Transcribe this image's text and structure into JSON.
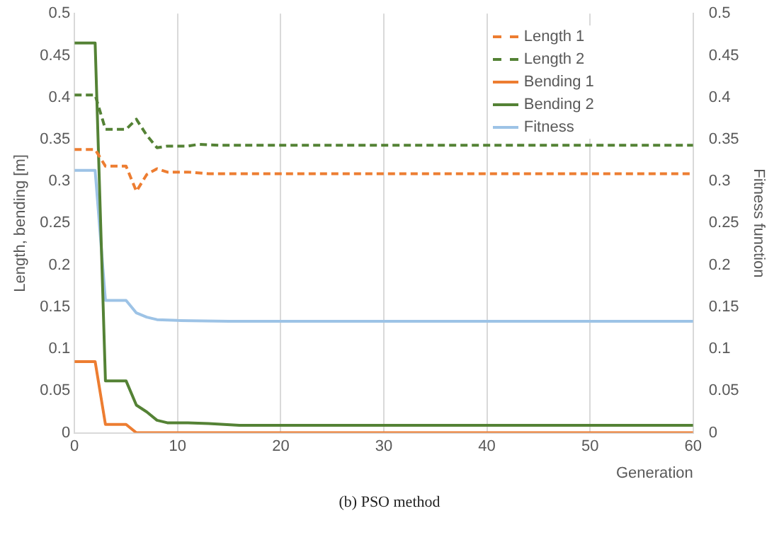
{
  "chart_data": {
    "type": "line",
    "xlabel": "Generation",
    "ylabel": "Length, bending [m]",
    "y2label": "Fitness function",
    "xlim": [
      0,
      60
    ],
    "xticks": [
      0,
      10,
      20,
      30,
      40,
      50,
      60
    ],
    "ylim": [
      0,
      0.5
    ],
    "yticks": [
      0,
      0.05,
      0.1,
      0.15,
      0.2,
      0.25,
      0.3,
      0.35,
      0.4,
      0.45,
      0.5
    ],
    "y2lim": [
      0,
      0.5
    ],
    "y2ticks": [
      0,
      0.05,
      0.1,
      0.15,
      0.2,
      0.25,
      0.3,
      0.35,
      0.4,
      0.45,
      0.5
    ],
    "grid": "x",
    "legend": "top right",
    "marker": "none",
    "annotations": [
      "(b) PSO method"
    ],
    "series": [
      {
        "name": "Length 1",
        "color": "#ed7d31",
        "line_style": "dashed",
        "x": [
          0,
          2,
          3,
          5,
          6,
          7,
          8,
          9,
          11,
          13,
          60
        ],
        "values": [
          0.338,
          0.338,
          0.318,
          0.318,
          0.288,
          0.308,
          0.315,
          0.311,
          0.311,
          0.309,
          0.309
        ]
      },
      {
        "name": "Length 2",
        "color": "#548235",
        "line_style": "dashed",
        "x": [
          0,
          2,
          3,
          5,
          6,
          7,
          8,
          9,
          11,
          12,
          14,
          60
        ],
        "values": [
          0.403,
          0.403,
          0.362,
          0.362,
          0.374,
          0.355,
          0.34,
          0.342,
          0.342,
          0.344,
          0.343,
          0.343
        ]
      },
      {
        "name": "Bending 1",
        "color": "#ed7d31",
        "line_style": "solid",
        "x": [
          0,
          2,
          3,
          5,
          6,
          60
        ],
        "values": [
          0.085,
          0.085,
          0.01,
          0.01,
          0,
          0
        ]
      },
      {
        "name": "Bending 2",
        "color": "#548235",
        "line_style": "solid",
        "x": [
          0,
          2,
          3,
          5,
          6,
          7,
          8,
          9,
          11,
          13,
          16,
          60
        ],
        "values": [
          0.465,
          0.465,
          0.062,
          0.062,
          0.033,
          0.025,
          0.015,
          0.012,
          0.012,
          0.011,
          0.009,
          0.009
        ]
      },
      {
        "name": "Fitness",
        "color": "#9dc3e6",
        "line_style": "solid",
        "axis": "y2",
        "x": [
          0,
          2,
          3,
          5,
          6,
          7,
          8,
          10,
          15,
          60
        ],
        "values": [
          0.313,
          0.313,
          0.158,
          0.158,
          0.143,
          0.138,
          0.135,
          0.134,
          0.133,
          0.133
        ]
      }
    ]
  }
}
